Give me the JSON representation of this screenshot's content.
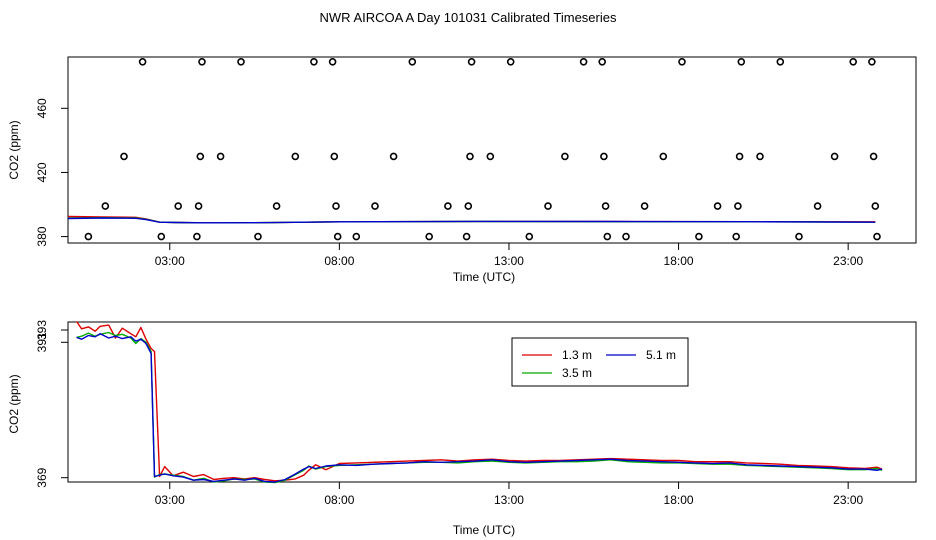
{
  "figure_title": "NWR AIRCOA A  Day 101031  Calibrated Timeseries",
  "chart_data": [
    {
      "type": "scatter",
      "panel": "top",
      "xlabel": "Time (UTC)",
      "ylabel": "CO2 (ppm)",
      "xlim": [
        0,
        25
      ],
      "ylim": [
        376,
        492
      ],
      "x_ticks": [
        3,
        8,
        13,
        18,
        23
      ],
      "x_tick_labels": [
        "03:00",
        "08:00",
        "13:00",
        "18:00",
        "23:00"
      ],
      "y_ticks": [
        380,
        420,
        460
      ],
      "y_tick_labels": [
        "380",
        "420",
        "460"
      ],
      "points": [
        {
          "x": 0.6,
          "y": 380
        },
        {
          "x": 1.1,
          "y": 399
        },
        {
          "x": 1.65,
          "y": 430
        },
        {
          "x": 2.2,
          "y": 489
        },
        {
          "x": 2.75,
          "y": 380
        },
        {
          "x": 3.25,
          "y": 399
        },
        {
          "x": 3.8,
          "y": 380
        },
        {
          "x": 3.85,
          "y": 399
        },
        {
          "x": 3.9,
          "y": 430
        },
        {
          "x": 3.95,
          "y": 489
        },
        {
          "x": 4.5,
          "y": 430
        },
        {
          "x": 5.1,
          "y": 489
        },
        {
          "x": 5.6,
          "y": 380
        },
        {
          "x": 6.15,
          "y": 399
        },
        {
          "x": 6.7,
          "y": 430
        },
        {
          "x": 7.25,
          "y": 489
        },
        {
          "x": 7.8,
          "y": 489
        },
        {
          "x": 7.85,
          "y": 430
        },
        {
          "x": 7.9,
          "y": 399
        },
        {
          "x": 7.95,
          "y": 380
        },
        {
          "x": 8.5,
          "y": 380
        },
        {
          "x": 9.05,
          "y": 399
        },
        {
          "x": 9.6,
          "y": 430
        },
        {
          "x": 10.15,
          "y": 489
        },
        {
          "x": 10.65,
          "y": 380
        },
        {
          "x": 11.2,
          "y": 399
        },
        {
          "x": 11.75,
          "y": 380
        },
        {
          "x": 11.8,
          "y": 399
        },
        {
          "x": 11.85,
          "y": 430
        },
        {
          "x": 11.9,
          "y": 489
        },
        {
          "x": 12.45,
          "y": 430
        },
        {
          "x": 13.05,
          "y": 489
        },
        {
          "x": 13.6,
          "y": 380
        },
        {
          "x": 14.15,
          "y": 399
        },
        {
          "x": 14.65,
          "y": 430
        },
        {
          "x": 15.2,
          "y": 489
        },
        {
          "x": 15.75,
          "y": 489
        },
        {
          "x": 15.8,
          "y": 430
        },
        {
          "x": 15.85,
          "y": 399
        },
        {
          "x": 15.9,
          "y": 380
        },
        {
          "x": 16.45,
          "y": 380
        },
        {
          "x": 17.0,
          "y": 399
        },
        {
          "x": 17.55,
          "y": 430
        },
        {
          "x": 18.1,
          "y": 489
        },
        {
          "x": 18.6,
          "y": 380
        },
        {
          "x": 19.15,
          "y": 399
        },
        {
          "x": 19.7,
          "y": 380
        },
        {
          "x": 19.75,
          "y": 399
        },
        {
          "x": 19.8,
          "y": 430
        },
        {
          "x": 19.85,
          "y": 489
        },
        {
          "x": 20.4,
          "y": 430
        },
        {
          "x": 21.0,
          "y": 489
        },
        {
          "x": 21.55,
          "y": 380
        },
        {
          "x": 22.1,
          "y": 399
        },
        {
          "x": 22.6,
          "y": 430
        },
        {
          "x": 23.15,
          "y": 489
        },
        {
          "x": 23.7,
          "y": 489
        },
        {
          "x": 23.75,
          "y": 430
        },
        {
          "x": 23.8,
          "y": 399
        },
        {
          "x": 23.85,
          "y": 380
        }
      ],
      "lines": [
        {
          "name": "1.3 m",
          "color": "#dd0000",
          "x": [
            0,
            1,
            2,
            2.3,
            2.7,
            3.2,
            4,
            6,
            8,
            12,
            16,
            20,
            23.8
          ],
          "y": [
            392.5,
            392.3,
            392,
            391,
            389,
            388.8,
            388.6,
            388.7,
            389.2,
            389.5,
            389.4,
            389.3,
            389.2
          ]
        },
        {
          "name": "3.5 m",
          "color": "#00aa00",
          "x": [
            0,
            1,
            2,
            2.3,
            2.7,
            3.2,
            4,
            6,
            8,
            12,
            16,
            20,
            23.8
          ],
          "y": [
            391.5,
            391.8,
            391.6,
            390.8,
            389,
            388.8,
            388.6,
            388.7,
            389.2,
            389.4,
            389.3,
            389.2,
            389
          ]
        },
        {
          "name": "5.1 m",
          "color": "#0000cc",
          "x": [
            0,
            1,
            2,
            2.3,
            2.7,
            3.2,
            4,
            6,
            8,
            12,
            16,
            20,
            23.8
          ],
          "y": [
            391.3,
            391.6,
            391.4,
            390.6,
            389,
            388.8,
            388.6,
            388.7,
            389.2,
            389.5,
            389.4,
            389.3,
            389
          ]
        }
      ]
    },
    {
      "type": "line",
      "panel": "bottom",
      "xlabel": "Time (UTC)",
      "ylabel": "CO2 (ppm)",
      "xlim": [
        0,
        25
      ],
      "ylim": [
        368.3,
        394.3
      ],
      "x_ticks": [
        3,
        8,
        13,
        18,
        23
      ],
      "x_tick_labels": [
        "03:00",
        "08:00",
        "13:00",
        "18:00",
        "23:00"
      ],
      "y_ticks": [
        369,
        391,
        393
      ],
      "y_tick_labels": [
        "369",
        "391",
        "393"
      ],
      "legend": {
        "position": "top-right",
        "entries": [
          {
            "label": "1.3 m",
            "color": "#dd0000"
          },
          {
            "label": "5.1 m",
            "color": "#0000cc"
          },
          {
            "label": "3.5 m",
            "color": "#00aa00"
          }
        ]
      },
      "series": [
        {
          "name": "1.3 m",
          "color": "#dd0000",
          "x": [
            0.25,
            0.4,
            0.6,
            0.8,
            0.95,
            1.2,
            1.4,
            1.6,
            1.85,
            2.0,
            2.15,
            2.3,
            2.45,
            2.55,
            2.7,
            2.85,
            3.1,
            3.4,
            3.7,
            4.0,
            4.3,
            4.6,
            4.9,
            5.2,
            5.5,
            5.8,
            6.1,
            6.4,
            6.7,
            6.95,
            7.1,
            7.3,
            7.6,
            8.0,
            8.5,
            9.0,
            9.5,
            10.0,
            10.5,
            11.0,
            11.5,
            12.0,
            12.5,
            13.0,
            13.5,
            14.0,
            14.5,
            15.0,
            15.5,
            16.0,
            16.5,
            17.0,
            17.5,
            18.0,
            18.5,
            19.0,
            19.5,
            20.0,
            20.5,
            21.0,
            21.5,
            22.0,
            22.5,
            23.0,
            23.5,
            23.85,
            24.0
          ],
          "y": [
            394.4,
            393.2,
            393.5,
            392.8,
            393.6,
            393.8,
            391.7,
            393.3,
            392.4,
            391.9,
            393.4,
            391.5,
            390.0,
            389.5,
            369.2,
            370.8,
            369.3,
            369.9,
            369.2,
            369.5,
            368.7,
            368.9,
            369.0,
            368.8,
            369.0,
            368.7,
            368.5,
            368.6,
            368.8,
            369.4,
            370.2,
            371.1,
            370.3,
            371.3,
            371.4,
            371.5,
            371.6,
            371.7,
            371.8,
            371.9,
            371.7,
            371.9,
            372.0,
            371.8,
            371.7,
            371.8,
            371.8,
            371.9,
            372.0,
            372.1,
            372.0,
            371.9,
            371.8,
            371.8,
            371.6,
            371.6,
            371.6,
            371.4,
            371.3,
            371.2,
            371.0,
            370.9,
            370.8,
            370.6,
            370.5,
            370.7,
            370.4
          ]
        },
        {
          "name": "3.5 m",
          "color": "#00aa00",
          "x": [
            0.25,
            0.4,
            0.6,
            0.8,
            0.95,
            1.2,
            1.4,
            1.6,
            1.85,
            2.0,
            2.15,
            2.3,
            2.45,
            2.55,
            2.7,
            2.85,
            3.1,
            3.4,
            3.7,
            4.0,
            4.3,
            4.6,
            4.9,
            5.2,
            5.5,
            5.8,
            6.1,
            6.4,
            6.7,
            6.95,
            7.1,
            7.3,
            7.6,
            8.0,
            8.5,
            9.0,
            9.5,
            10.0,
            10.5,
            11.0,
            11.5,
            12.0,
            12.5,
            13.0,
            13.5,
            14.0,
            14.5,
            15.0,
            15.5,
            16.0,
            16.5,
            17.0,
            17.5,
            18.0,
            18.5,
            19.0,
            19.5,
            20.0,
            20.5,
            21.0,
            21.5,
            22.0,
            22.5,
            23.0,
            23.5,
            23.85,
            24.0
          ],
          "y": [
            391.8,
            392.0,
            392.5,
            392.0,
            392.3,
            392.6,
            392.1,
            392.3,
            391.7,
            390.8,
            391.6,
            391.0,
            389.5,
            369.1,
            369.5,
            369.6,
            369.4,
            369.2,
            368.6,
            368.9,
            368.3,
            368.5,
            368.8,
            368.7,
            368.8,
            368.3,
            368.2,
            368.6,
            369.5,
            370.2,
            370.9,
            370.4,
            370.8,
            371.0,
            371.1,
            371.2,
            371.3,
            371.4,
            371.5,
            371.5,
            371.4,
            371.6,
            371.7,
            371.5,
            371.4,
            371.5,
            371.6,
            371.6,
            371.7,
            371.9,
            371.6,
            371.5,
            371.4,
            371.4,
            371.3,
            371.2,
            371.2,
            371.0,
            370.9,
            370.8,
            370.7,
            370.6,
            370.5,
            370.3,
            370.3,
            370.5,
            370.2
          ]
        },
        {
          "name": "5.1 m",
          "color": "#0000cc",
          "x": [
            0.25,
            0.4,
            0.6,
            0.8,
            0.95,
            1.2,
            1.4,
            1.6,
            1.85,
            2.0,
            2.15,
            2.3,
            2.45,
            2.55,
            2.7,
            2.85,
            3.1,
            3.4,
            3.7,
            4.0,
            4.3,
            4.6,
            4.9,
            5.2,
            5.5,
            5.8,
            6.1,
            6.4,
            6.7,
            6.95,
            7.1,
            7.3,
            7.6,
            8.0,
            8.5,
            9.0,
            9.5,
            10.0,
            10.5,
            11.0,
            11.5,
            12.0,
            12.5,
            13.0,
            13.5,
            14.0,
            14.5,
            15.0,
            15.5,
            16.0,
            16.5,
            17.0,
            17.5,
            18.0,
            18.5,
            19.0,
            19.5,
            20.0,
            20.5,
            21.0,
            21.5,
            22.0,
            22.5,
            23.0,
            23.5,
            23.85,
            24.0
          ],
          "y": [
            391.8,
            391.5,
            392.1,
            391.9,
            392.4,
            391.7,
            392.0,
            391.6,
            391.9,
            391.2,
            391.5,
            390.8,
            389.2,
            369.2,
            369.4,
            369.6,
            369.3,
            369.1,
            368.6,
            368.7,
            368.4,
            368.6,
            368.8,
            368.6,
            368.9,
            368.4,
            368.3,
            368.7,
            369.6,
            370.4,
            370.8,
            370.5,
            370.9,
            371.1,
            371.0,
            371.2,
            371.3,
            371.4,
            371.6,
            371.5,
            371.6,
            371.7,
            371.9,
            371.6,
            371.5,
            371.6,
            371.7,
            371.8,
            371.9,
            372.0,
            371.8,
            371.7,
            371.6,
            371.5,
            371.4,
            371.3,
            371.4,
            371.1,
            371.0,
            370.9,
            370.8,
            370.7,
            370.6,
            370.4,
            370.4,
            370.2,
            370.4
          ]
        }
      ]
    }
  ]
}
